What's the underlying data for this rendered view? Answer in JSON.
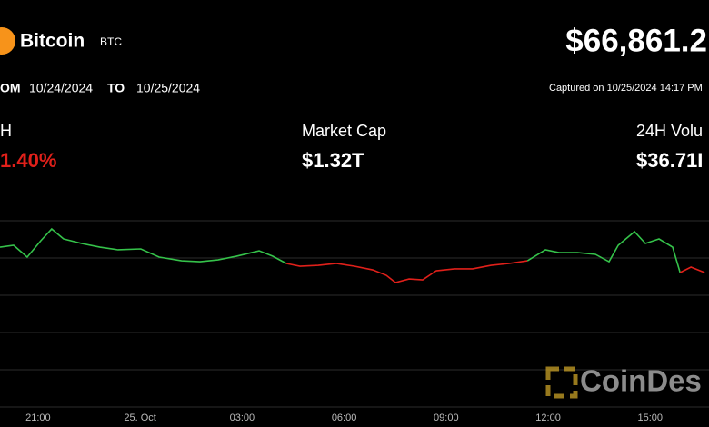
{
  "header": {
    "name": "Bitcoin",
    "symbol": "BTC",
    "price": "$66,861.2",
    "from_label": "OM",
    "from_date": "10/24/2024",
    "to_label": "TO",
    "to_date": "10/25/2024",
    "captured": "Captured on 10/25/2024 14:17 PM"
  },
  "stats": [
    {
      "label": "H",
      "value": "1.40%"
    },
    {
      "label": "Market Cap",
      "value": "$1.32T"
    },
    {
      "label": "24H Volu",
      "value": "$36.71I"
    }
  ],
  "brand": "CoinDes",
  "chart_data": {
    "type": "line",
    "x": [
      -1.12,
      -0.72,
      -0.32,
      0.08,
      0.4,
      0.75,
      1.28,
      1.82,
      2.35,
      3.02,
      3.56,
      4.22,
      4.76,
      5.29,
      5.83,
      6.5,
      6.9,
      7.3,
      7.7,
      8.24,
      8.77,
      9.3,
      9.84,
      10.24,
      10.51,
      10.91,
      11.31,
      11.71,
      12.25,
      12.78,
      13.32,
      13.85,
      14.39,
      14.92,
      15.32,
      15.86,
      16.39,
      16.79,
      17.06,
      17.54,
      17.86,
      18.26,
      18.66,
      18.88,
      19.2,
      19.6
    ],
    "values": [
      68146,
      68171,
      68012,
      68232,
      68390,
      68256,
      68195,
      68146,
      68110,
      68122,
      68012,
      67963,
      67951,
      67975,
      68024,
      68097,
      68024,
      67927,
      67890,
      67902,
      67927,
      67890,
      67841,
      67768,
      67670,
      67719,
      67707,
      67829,
      67854,
      67854,
      67902,
      67927,
      67963,
      68110,
      68073,
      68073,
      68049,
      67951,
      68171,
      68354,
      68195,
      68256,
      68146,
      67805,
      67878,
      67805
    ],
    "baseline": 67939,
    "color_up": "#35c24a",
    "color_down": "#e0201a",
    "xlim": [
      -1.12,
      19.73
    ],
    "ylim": [
      66000,
      68500
    ],
    "xticks": [
      {
        "value": 0,
        "label": "21:00"
      },
      {
        "value": 3,
        "label": "25. Oct"
      },
      {
        "value": 6,
        "label": "03:00"
      },
      {
        "value": 9,
        "label": "06:00"
      },
      {
        "value": 12,
        "label": "09:00"
      },
      {
        "value": 15,
        "label": "12:00"
      },
      {
        "value": 18,
        "label": "15:00"
      }
    ]
  }
}
